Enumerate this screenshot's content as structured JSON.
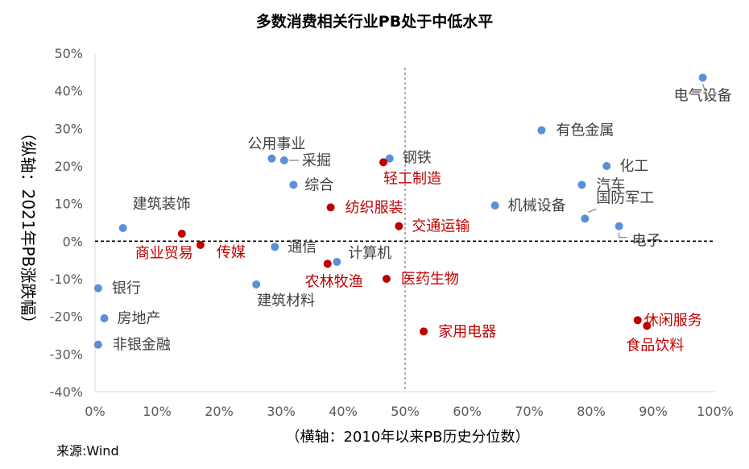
{
  "chart_data": {
    "type": "scatter",
    "title": "多数消费相关行业PB处于中低水平",
    "xlabel": "（横轴：2010年以来PB历史分位数）",
    "ylabel": "（纵轴：2021年PB涨跌幅）",
    "source": "来源:Wind",
    "xlim": [
      0,
      100
    ],
    "ylim": [
      -40,
      50
    ],
    "xticks": [
      "0%",
      "10%",
      "20%",
      "30%",
      "40%",
      "50%",
      "60%",
      "70%",
      "80%",
      "90%",
      "100%"
    ],
    "yticks": [
      "50%",
      "40%",
      "30%",
      "20%",
      "10%",
      "0%",
      "-10%",
      "-20%",
      "-30%",
      "-40%"
    ],
    "grid": false,
    "reference_lines": {
      "x": 50,
      "y": 0
    },
    "colors": {
      "blue": "#5B8FD9",
      "red": "#C00000",
      "label_gray": "#404040"
    },
    "series": [
      {
        "color": "#5B8FD9",
        "points": [
          {
            "label": "电气设备",
            "x": 98,
            "y": 43.5
          },
          {
            "label": "有色金属",
            "x": 72,
            "y": 29.5
          },
          {
            "label": "公用事业",
            "x": 28.5,
            "y": 22
          },
          {
            "label": "采掘",
            "x": 30.5,
            "y": 21.5
          },
          {
            "label": "钢铁",
            "x": 47.5,
            "y": 22
          },
          {
            "label": "化工",
            "x": 82.5,
            "y": 20
          },
          {
            "label": "综合",
            "x": 32,
            "y": 15
          },
          {
            "label": "汽车",
            "x": 78.5,
            "y": 15
          },
          {
            "label": "机械设备",
            "x": 64.5,
            "y": 9.5
          },
          {
            "label": "国防军工",
            "x": 79,
            "y": 6
          },
          {
            "label": "建筑装饰",
            "x": 4.5,
            "y": 3.5
          },
          {
            "label": "电子",
            "x": 84.5,
            "y": 4
          },
          {
            "label": "通信",
            "x": 29,
            "y": -1.5
          },
          {
            "label": "计算机",
            "x": 39,
            "y": -5.5
          },
          {
            "label": "建筑材料",
            "x": 26,
            "y": -11.5
          },
          {
            "label": "银行",
            "x": 0.5,
            "y": -12.5
          },
          {
            "label": "房地产",
            "x": 1.5,
            "y": -20.5
          },
          {
            "label": "非银金融",
            "x": 0.5,
            "y": -27.5
          }
        ]
      },
      {
        "color": "#C00000",
        "points": [
          {
            "label": "轻工制造",
            "x": 46.5,
            "y": 21
          },
          {
            "label": "纺织服装",
            "x": 38,
            "y": 9
          },
          {
            "label": "交通运输",
            "x": 49,
            "y": 4
          },
          {
            "label": "商业贸易",
            "x": 14,
            "y": 2
          },
          {
            "label": "传媒",
            "x": 17,
            "y": -1
          },
          {
            "label": "农林牧渔",
            "x": 37.5,
            "y": -6
          },
          {
            "label": "医药生物",
            "x": 47,
            "y": -10
          },
          {
            "label": "家用电器",
            "x": 53,
            "y": -24
          },
          {
            "label": "休闲服务",
            "x": 87.5,
            "y": -21
          },
          {
            "label": "食品饮料",
            "x": 89,
            "y": -22.5
          }
        ]
      }
    ]
  }
}
